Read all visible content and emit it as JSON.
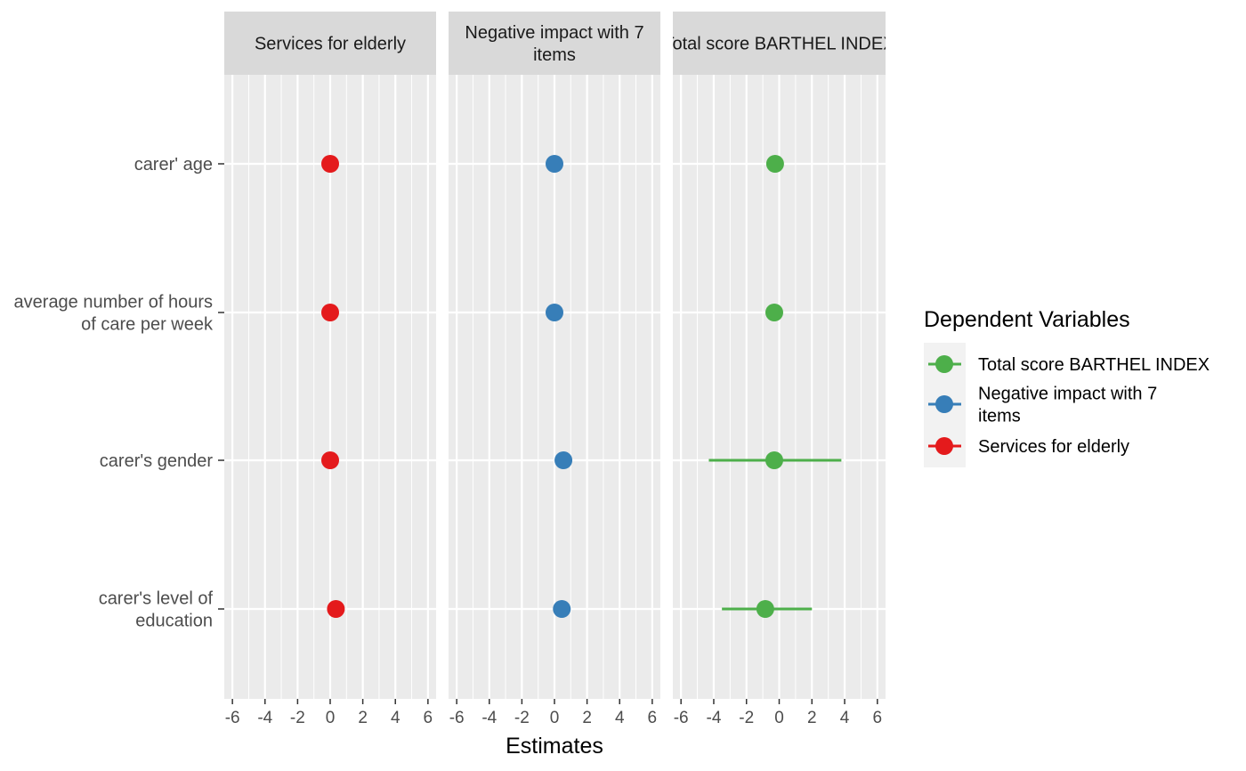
{
  "chart_data": {
    "type": "scatter",
    "subtype": "faceted coefficient plot with error bars",
    "xlabel": "Estimates",
    "ylabel": "",
    "xlim": [
      -6.5,
      6.5
    ],
    "x_ticks": [
      "-6",
      "-4",
      "-2",
      "0",
      "2",
      "4",
      "6"
    ],
    "x_tick_values": [
      -6,
      -4,
      -2,
      0,
      2,
      4,
      6
    ],
    "categories": [
      "carer' age",
      "average number of hours of care per week",
      "carer's gender",
      "carer's level of education"
    ],
    "category_lines": [
      [
        "carer' age"
      ],
      [
        "average number of hours",
        "of care per week"
      ],
      [
        "carer's gender"
      ],
      [
        "carer's level of",
        "education"
      ]
    ],
    "grid": true,
    "legend": {
      "title": "Dependent Variables",
      "position": "right",
      "entries": [
        {
          "label": "Total score BARTHEL INDEX",
          "lines": [
            "Total score BARTHEL INDEX"
          ],
          "color": "#4DAF4A"
        },
        {
          "label": "Negative impact with 7 items",
          "lines": [
            "Negative impact with 7",
            "items"
          ],
          "color": "#377EB8"
        },
        {
          "label": "Services for elderly",
          "lines": [
            "Services for elderly"
          ],
          "color": "#E41A1C"
        }
      ]
    },
    "facets": [
      {
        "title": "Services for elderly",
        "title_lines": [
          "Services for elderly"
        ],
        "color": "#E41A1C",
        "points": [
          {
            "category": "carer' age",
            "estimate": 0.0,
            "low": 0.0,
            "high": 0.0
          },
          {
            "category": "average number of hours of care per week",
            "estimate": 0.0,
            "low": 0.0,
            "high": 0.0
          },
          {
            "category": "carer's gender",
            "estimate": 0.0,
            "low": 0.0,
            "high": 0.0
          },
          {
            "category": "carer's level of education",
            "estimate": 0.35,
            "low": 0.35,
            "high": 0.35
          }
        ]
      },
      {
        "title": "Negative impact with 7 items",
        "title_lines": [
          "Negative impact with 7",
          "items"
        ],
        "color": "#377EB8",
        "points": [
          {
            "category": "carer' age",
            "estimate": 0.0,
            "low": 0.0,
            "high": 0.0
          },
          {
            "category": "average number of hours of care per week",
            "estimate": 0.0,
            "low": 0.0,
            "high": 0.0
          },
          {
            "category": "carer's gender",
            "estimate": 0.55,
            "low": 0.55,
            "high": 0.55
          },
          {
            "category": "carer's level of education",
            "estimate": 0.45,
            "low": 0.45,
            "high": 0.45
          }
        ]
      },
      {
        "title": "Total score BARTHEL INDEX",
        "title_lines": [
          "Total score BARTHEL INDEX"
        ],
        "color": "#4DAF4A",
        "points": [
          {
            "category": "carer' age",
            "estimate": -0.25,
            "low": -0.25,
            "high": -0.25
          },
          {
            "category": "average number of hours of care per week",
            "estimate": -0.3,
            "low": -0.3,
            "high": -0.3
          },
          {
            "category": "carer's gender",
            "estimate": -0.3,
            "low": -4.3,
            "high": 3.8
          },
          {
            "category": "carer's level of education",
            "estimate": -0.85,
            "low": -3.5,
            "high": 2.0
          }
        ]
      }
    ]
  },
  "colors": {
    "panel_bg": "#EBEBEB",
    "strip_bg": "#D9D9D9",
    "grid": "#FFFFFF",
    "axis_tick": "#333333"
  }
}
